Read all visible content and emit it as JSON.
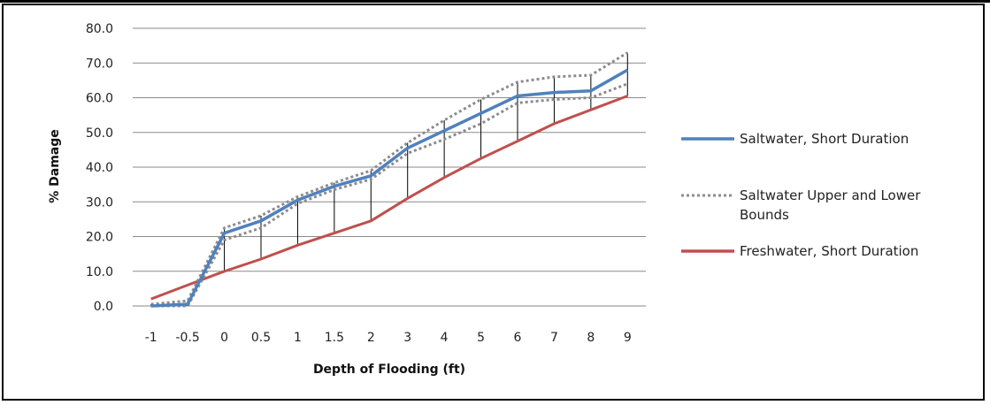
{
  "chart_data": {
    "type": "line",
    "title": "",
    "xlabel": "Depth of Flooding (ft)",
    "ylabel": "% Damage",
    "ylim": [
      0,
      80
    ],
    "yticks": [
      "0.0",
      "10.0",
      "20.0",
      "30.0",
      "40.0",
      "50.0",
      "60.0",
      "70.0",
      "80.0"
    ],
    "grid": "horizontal",
    "legend_position": "right",
    "categories": [
      "-1",
      "-0.5",
      "0",
      "0.5",
      "1",
      "1.5",
      "2",
      "3",
      "4",
      "5",
      "6",
      "7",
      "8",
      "9"
    ],
    "series": [
      {
        "name": "Saltwater, Short Duration",
        "color": "#4f81bd",
        "style": "solid",
        "values": [
          0.0,
          0.5,
          21.0,
          24.5,
          30.5,
          34.5,
          37.5,
          45.5,
          50.5,
          55.5,
          60.5,
          61.5,
          62.0,
          68.0
        ]
      },
      {
        "name": "Saltwater Upper and Lower Bounds",
        "color": "#8c8c8c",
        "style": "dotted",
        "upper": [
          0.5,
          1.5,
          22.5,
          26.0,
          31.5,
          35.5,
          39.0,
          47.0,
          53.5,
          59.5,
          64.5,
          66.0,
          66.5,
          73.0
        ],
        "lower": [
          0.0,
          0.0,
          19.0,
          22.5,
          29.5,
          33.5,
          36.5,
          44.0,
          48.0,
          52.5,
          58.5,
          59.5,
          60.0,
          64.0
        ]
      },
      {
        "name": "Freshwater, Short Duration",
        "color": "#c0504d",
        "style": "solid",
        "values": [
          2.0,
          6.0,
          10.0,
          13.5,
          17.5,
          21.0,
          24.5,
          31.0,
          37.0,
          42.5,
          47.5,
          52.5,
          56.5,
          60.5
        ]
      }
    ]
  }
}
